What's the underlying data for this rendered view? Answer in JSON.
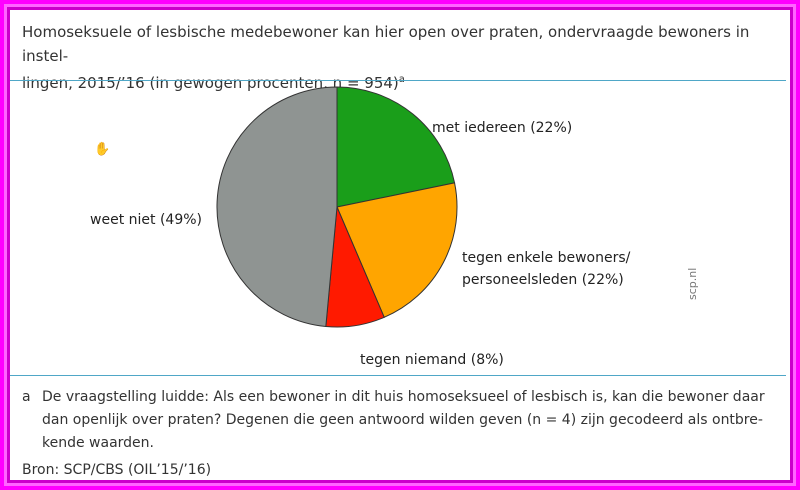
{
  "title": "Homoseksuele of lesbische medebewoner kan hier open over praten, ondervraagde bewoners in instel-lingen, 2015/’16 (in gewogen procenten, n = 954)",
  "title_line1": "Homoseksuele of lesbische medebewoner kan hier open over praten, ondervraagde bewoners in instel-",
  "title_line2": "lingen, 2015/’16 (in gewogen procenten, n = 954)",
  "title_sup": "a",
  "source_tag": "scp.nl",
  "cursor_icon": "hand-pointer-icon",
  "chart_data": {
    "type": "pie",
    "title": "",
    "unit": "%",
    "slices": [
      {
        "label": "met iedereen (22%)",
        "value": 22,
        "color": "#1a9e1a"
      },
      {
        "label": "tegen enkele bewoners/ personeelsleden (22%)",
        "value": 22,
        "color": "#ffa500"
      },
      {
        "label": "tegen niemand (8%)",
        "value": 8,
        "color": "#ff1a00"
      },
      {
        "label": "weet niet (49%)",
        "value": 49,
        "color": "#8f9492"
      }
    ]
  },
  "footnote": {
    "marker": "a",
    "text": "De vraagstelling luidde: Als een bewoner in dit huis homoseksueel of lesbisch is, kan die bewoner daar dan openlijk over praten? Degenen die geen antwoord wilden geven (n = 4) zijn gecodeerd als ontbre-kende waarden.",
    "line1": "De vraagstelling luidde: Als een bewoner in dit huis homoseksueel of lesbisch is, kan die bewoner daar",
    "line2": "dan openlijk over praten? Degenen die geen antwoord wilden geven (n = 4) zijn gecodeerd als ontbre-",
    "line3": "kende waarden."
  },
  "source": "Bron: SCP/CBS (OIL’15/’16)"
}
